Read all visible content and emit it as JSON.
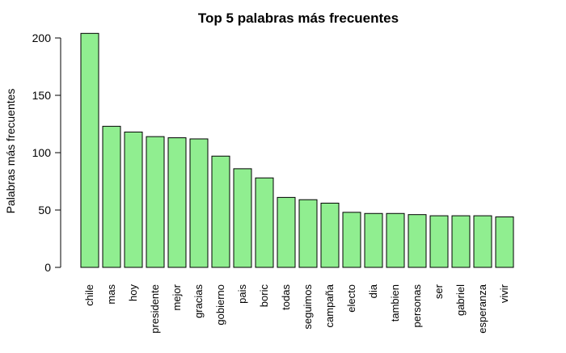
{
  "chart_data": {
    "type": "bar",
    "title": "Top 5 palabras más frecuentes",
    "xlabel": "",
    "ylabel": "Palabras más frecuentes",
    "categories": [
      "chile",
      "mas",
      "hoy",
      "presidente",
      "mejor",
      "gracias",
      "gobierno",
      "pais",
      "boric",
      "todas",
      "seguimos",
      "campaña",
      "electo",
      "dia",
      "tambien",
      "personas",
      "ser",
      "gabriel",
      "esperanza",
      "vivir"
    ],
    "values": [
      204,
      123,
      118,
      114,
      113,
      112,
      97,
      86,
      78,
      61,
      59,
      56,
      48,
      47,
      47,
      46,
      45,
      45,
      45,
      44
    ],
    "yticks": [
      0,
      50,
      100,
      150,
      200
    ],
    "ylim": [
      0,
      204
    ],
    "grid": false,
    "legend": "none",
    "bar_color": "#90EE90",
    "edge_color": "#000000"
  }
}
